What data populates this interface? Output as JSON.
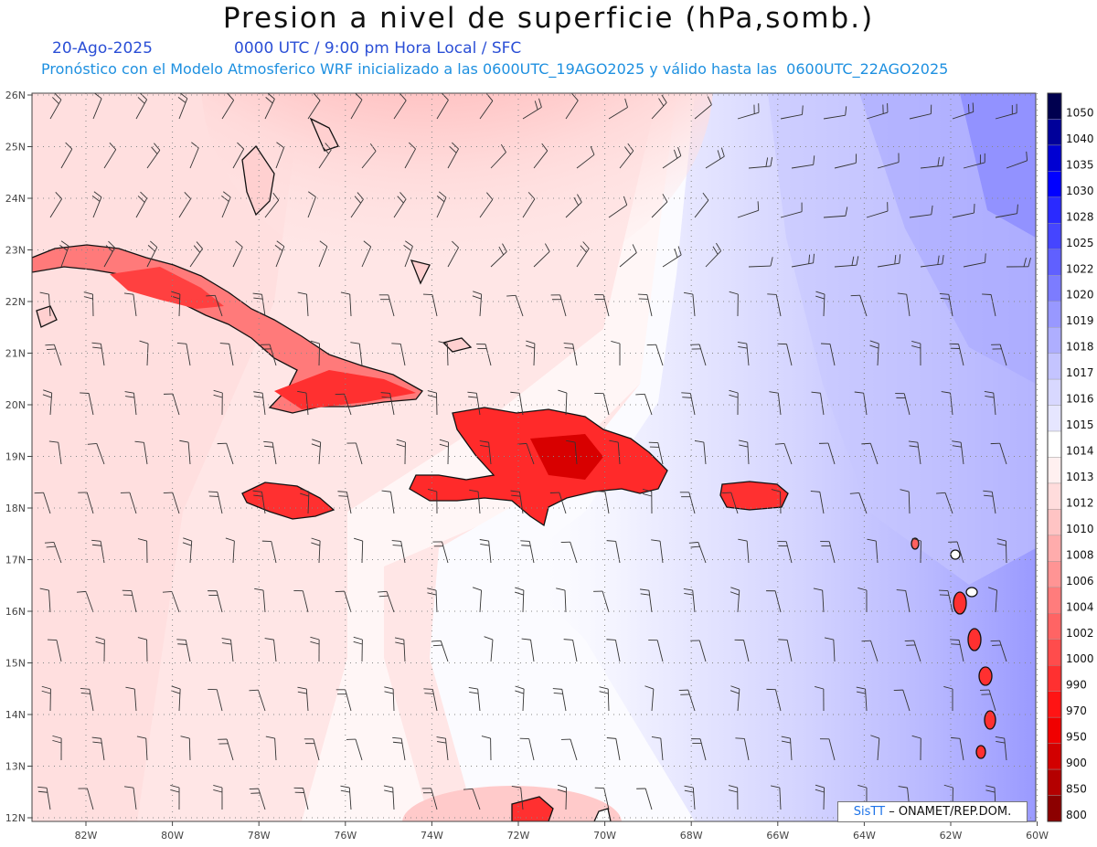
{
  "title": "Presion a nivel de superficie (hPa,somb.)",
  "date": "20-Ago-2025",
  "time_info": "0000 UTC / 9:00 pm Hora Local / SFC",
  "forecast_info": "Pronóstico con el Modelo Atmosferico WRF inicializado a las 0600UTC_19AGO2025 y válido hasta las  0600UTC_22AGO2025",
  "credit": {
    "brand": "SisTT",
    "text": " – ONAMET/REP.DOM."
  },
  "axes": {
    "lon_labels": [
      "82W",
      "80W",
      "78W",
      "76W",
      "74W",
      "72W",
      "70W",
      "68W",
      "66W",
      "64W",
      "62W",
      "60W"
    ],
    "lat_labels": [
      "26N",
      "25N",
      "24N",
      "23N",
      "22N",
      "21N",
      "20N",
      "19N",
      "18N",
      "17N",
      "16N",
      "15N",
      "14N",
      "13N",
      "12N"
    ]
  },
  "legend": {
    "levels": [
      "1050",
      "1040",
      "1035",
      "1030",
      "1028",
      "1025",
      "1022",
      "1020",
      "1019",
      "1018",
      "1017",
      "1016",
      "1015",
      "1014",
      "1013",
      "1012",
      "1010",
      "1008",
      "1006",
      "1004",
      "1002",
      "1000",
      "990",
      "970",
      "950",
      "900",
      "850",
      "800"
    ],
    "colors": [
      "#00004f",
      "#00009a",
      "#0000d2",
      "#0000ff",
      "#2a2aff",
      "#4545ff",
      "#6060ff",
      "#7c7cff",
      "#9898ff",
      "#aeaeff",
      "#c4c4ff",
      "#d8d8ff",
      "#e6e6ff",
      "#ffffff",
      "#fff0f0",
      "#ffdcdc",
      "#ffc4c4",
      "#ffacac",
      "#ff9494",
      "#ff7c7c",
      "#ff6464",
      "#ff4c4c",
      "#ff3030",
      "#ff1414",
      "#f00000",
      "#d20000",
      "#b40000",
      "#8c0000"
    ]
  }
}
